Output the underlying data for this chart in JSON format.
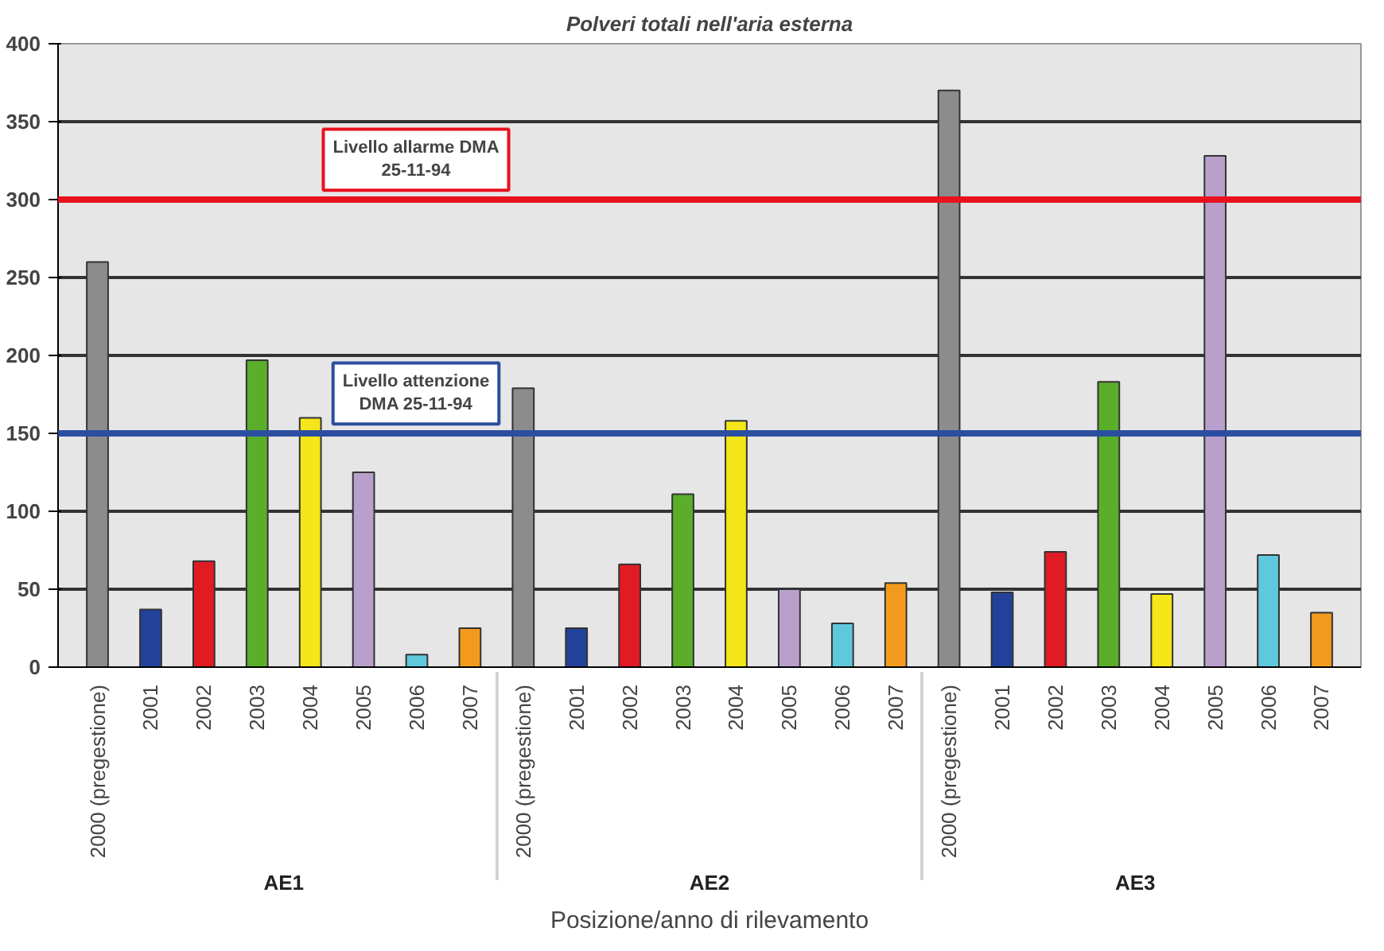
{
  "chart_data": {
    "type": "bar",
    "title": "Polveri totali nell'aria esterna",
    "xlabel": "Posizione/anno di rilevamento",
    "categories": [
      "2000 (pregestione)",
      "2001",
      "2002",
      "2003",
      "2004",
      "2005",
      "2006",
      "2007",
      "2000 (pregestione)",
      "2001",
      "2002",
      "2003",
      "2004",
      "2005",
      "2006",
      "2007",
      "2000 (pregestione)",
      "2001",
      "2002",
      "2003",
      "2004",
      "2005",
      "2006",
      "2007"
    ],
    "values": [
      260,
      37,
      68,
      197,
      160,
      125,
      8,
      25,
      179,
      25,
      66,
      111,
      158,
      50,
      28,
      54,
      370,
      48,
      74,
      183,
      47,
      328,
      72,
      35
    ],
    "colors": [
      "#8c8c8c",
      "#22429a",
      "#e01b24",
      "#5aae2a",
      "#f4e618",
      "#b9a0cc",
      "#5fc8dc",
      "#f39a1e",
      "#8c8c8c",
      "#22429a",
      "#e01b24",
      "#5aae2a",
      "#f4e618",
      "#b9a0cc",
      "#5fc8dc",
      "#f39a1e",
      "#8c8c8c",
      "#22429a",
      "#e01b24",
      "#5aae2a",
      "#f4e618",
      "#b9a0cc",
      "#5fc8dc",
      "#f39a1e"
    ],
    "annotations": [
      "AE1",
      "AE2",
      "AE3"
    ],
    "ref_lines": [
      {
        "axis": "y",
        "value": 300,
        "label": "Livello allarme DMA\n25-11-94",
        "color": "#e8121e"
      },
      {
        "axis": "y",
        "value": 150,
        "label": "Livello attenzione\nDMA 25-11-94",
        "color": "#2c4ea0"
      }
    ],
    "ylim": [
      0,
      400
    ],
    "yticks": [
      0,
      50,
      100,
      150,
      200,
      250,
      300,
      350,
      400
    ],
    "grid": "y"
  }
}
